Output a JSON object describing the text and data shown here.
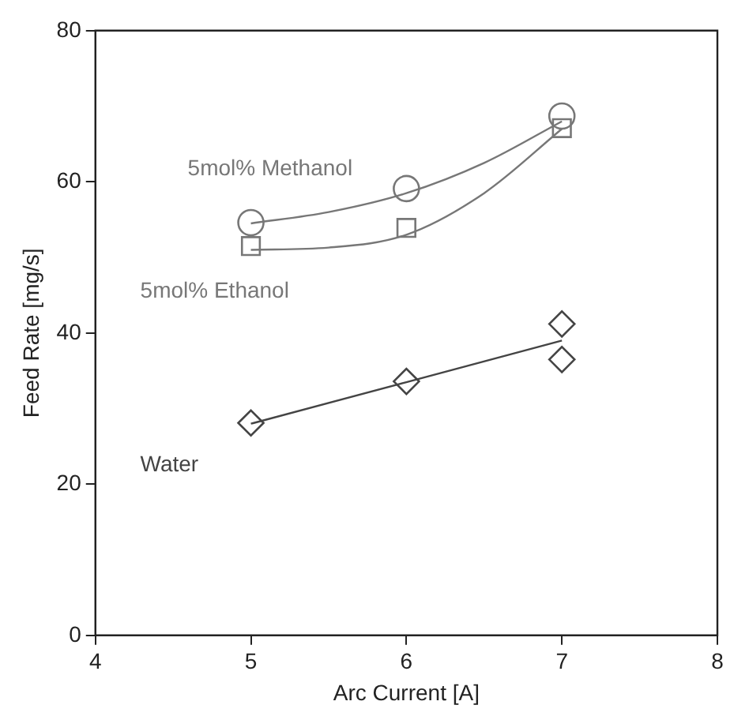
{
  "chart_data": {
    "type": "scatter",
    "xlabel": "Arc Current [A]",
    "ylabel": "Feed Rate [mg/s]",
    "xlim": [
      4,
      8
    ],
    "xticks": [
      4,
      5,
      6,
      7,
      8
    ],
    "ylim": [
      0,
      80
    ],
    "yticks": [
      0,
      20,
      40,
      60,
      80
    ],
    "grid": false,
    "legend": false,
    "series": [
      {
        "name": "5mol% Methanol",
        "marker": "circle",
        "color": "#777777",
        "x": [
          5,
          6,
          7
        ],
        "values": [
          54.6,
          59.1,
          68.7
        ]
      },
      {
        "name": "5mol% Ethanol",
        "marker": "square",
        "color": "#777777",
        "x": [
          5,
          6,
          7
        ],
        "values": [
          51.5,
          53.9,
          67.1
        ]
      },
      {
        "name": "Water",
        "marker": "diamond",
        "color": "#444444",
        "x": [
          5,
          6,
          7,
          7
        ],
        "values": [
          28.1,
          33.6,
          41.2,
          36.5
        ]
      },
      {
        "type": "line",
        "marker": "none",
        "color": "#777777",
        "x": [
          5,
          5.5,
          6,
          6.5,
          7
        ],
        "values": [
          54.5,
          56,
          58.5,
          62.5,
          68
        ]
      },
      {
        "type": "line",
        "marker": "none",
        "color": "#777777",
        "x": [
          5,
          5.5,
          6,
          6.5,
          7
        ],
        "values": [
          51,
          51.3,
          53,
          58.5,
          67
        ]
      },
      {
        "type": "line",
        "marker": "none",
        "color": "#444444",
        "x": [
          5,
          6,
          7
        ],
        "values": [
          28,
          33.5,
          39
        ]
      }
    ]
  }
}
